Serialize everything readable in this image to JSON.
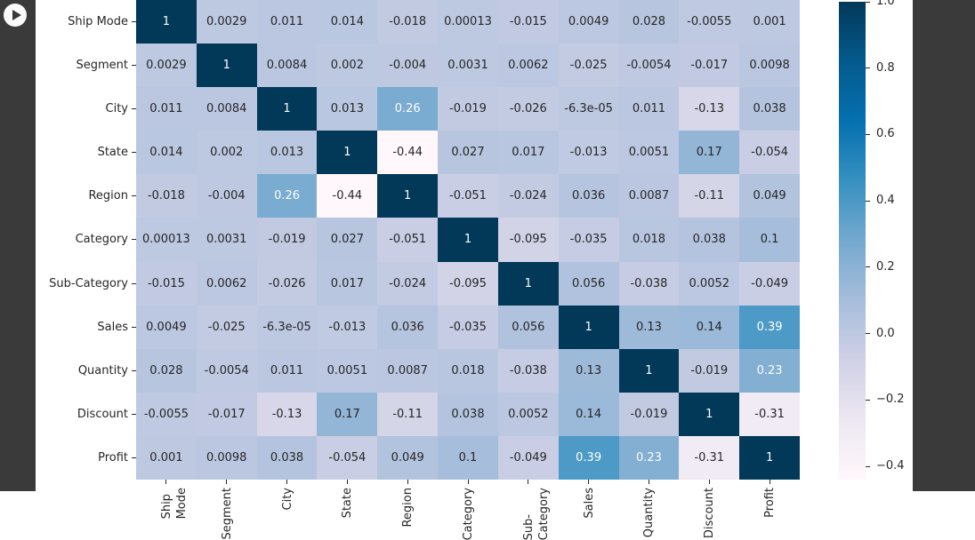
{
  "sidebar": {
    "run_button": "run-cell",
    "bg_color": "#3a3a3a",
    "button_bg": "#fbfbfb"
  },
  "chart_data": {
    "type": "heatmap",
    "title": "",
    "xlabel": "",
    "ylabel": "",
    "categories": [
      "Ship Mode",
      "Segment",
      "City",
      "State",
      "Region",
      "Category",
      "Sub-Category",
      "Sales",
      "Quantity",
      "Discount",
      "Profit"
    ],
    "matrix": [
      [
        "1",
        "0.0029",
        "0.011",
        "0.014",
        "-0.018",
        "0.00013",
        "-0.015",
        "0.0049",
        "0.028",
        "-0.0055",
        "0.001"
      ],
      [
        "0.0029",
        "1",
        "0.0084",
        "0.002",
        "-0.004",
        "0.0031",
        "0.0062",
        "-0.025",
        "-0.0054",
        "-0.017",
        "0.0098"
      ],
      [
        "0.011",
        "0.0084",
        "1",
        "0.013",
        "0.26",
        "-0.019",
        "-0.026",
        "-6.3e-05",
        "0.011",
        "-0.13",
        "0.038"
      ],
      [
        "0.014",
        "0.002",
        "0.013",
        "1",
        "-0.44",
        "0.027",
        "0.017",
        "-0.013",
        "0.0051",
        "0.17",
        "-0.054"
      ],
      [
        "-0.018",
        "-0.004",
        "0.26",
        "-0.44",
        "1",
        "-0.051",
        "-0.024",
        "0.036",
        "0.0087",
        "-0.11",
        "0.049"
      ],
      [
        "0.00013",
        "0.0031",
        "-0.019",
        "0.027",
        "-0.051",
        "1",
        "-0.095",
        "-0.035",
        "0.018",
        "0.038",
        "0.1"
      ],
      [
        "-0.015",
        "0.0062",
        "-0.026",
        "0.017",
        "-0.024",
        "-0.095",
        "1",
        "0.056",
        "-0.038",
        "0.0052",
        "-0.049"
      ],
      [
        "0.0049",
        "-0.025",
        "-6.3e-05",
        "-0.013",
        "0.036",
        "-0.035",
        "0.056",
        "1",
        "0.13",
        "0.14",
        "0.39"
      ],
      [
        "0.028",
        "-0.0054",
        "0.011",
        "0.0051",
        "0.0087",
        "0.018",
        "-0.038",
        "0.13",
        "1",
        "-0.019",
        "0.23"
      ],
      [
        "-0.0055",
        "-0.017",
        "-0.13",
        "0.17",
        "-0.11",
        "0.038",
        "0.0052",
        "0.14",
        "-0.019",
        "1",
        "-0.31"
      ],
      [
        "0.001",
        "0.0098",
        "0.038",
        "-0.054",
        "0.049",
        "0.1",
        "-0.049",
        "0.39",
        "0.23",
        "-0.31",
        "1"
      ]
    ],
    "vmin": -0.44,
    "vmax": 1.0,
    "grid": false,
    "legend_position": "right",
    "colormap_anchors": [
      "#fff7fb",
      "#ece7f2",
      "#d0d1e6",
      "#a6bddb",
      "#74a9cf",
      "#3690c0",
      "#0570b0",
      "#045a8d",
      "#023858"
    ],
    "colorbar_ticks": [
      {
        "label": "1.0",
        "value": 1.0
      },
      {
        "label": "0.8",
        "value": 0.8
      },
      {
        "label": "0.6",
        "value": 0.6
      },
      {
        "label": "0.4",
        "value": 0.4
      },
      {
        "label": "0.2",
        "value": 0.2
      },
      {
        "label": "0.0",
        "value": 0.0
      },
      {
        "label": "−0.2",
        "value": -0.2
      },
      {
        "label": "−0.4",
        "value": -0.4
      }
    ],
    "text_colors": {
      "dark": "#262626",
      "light": "#ffffff"
    }
  }
}
